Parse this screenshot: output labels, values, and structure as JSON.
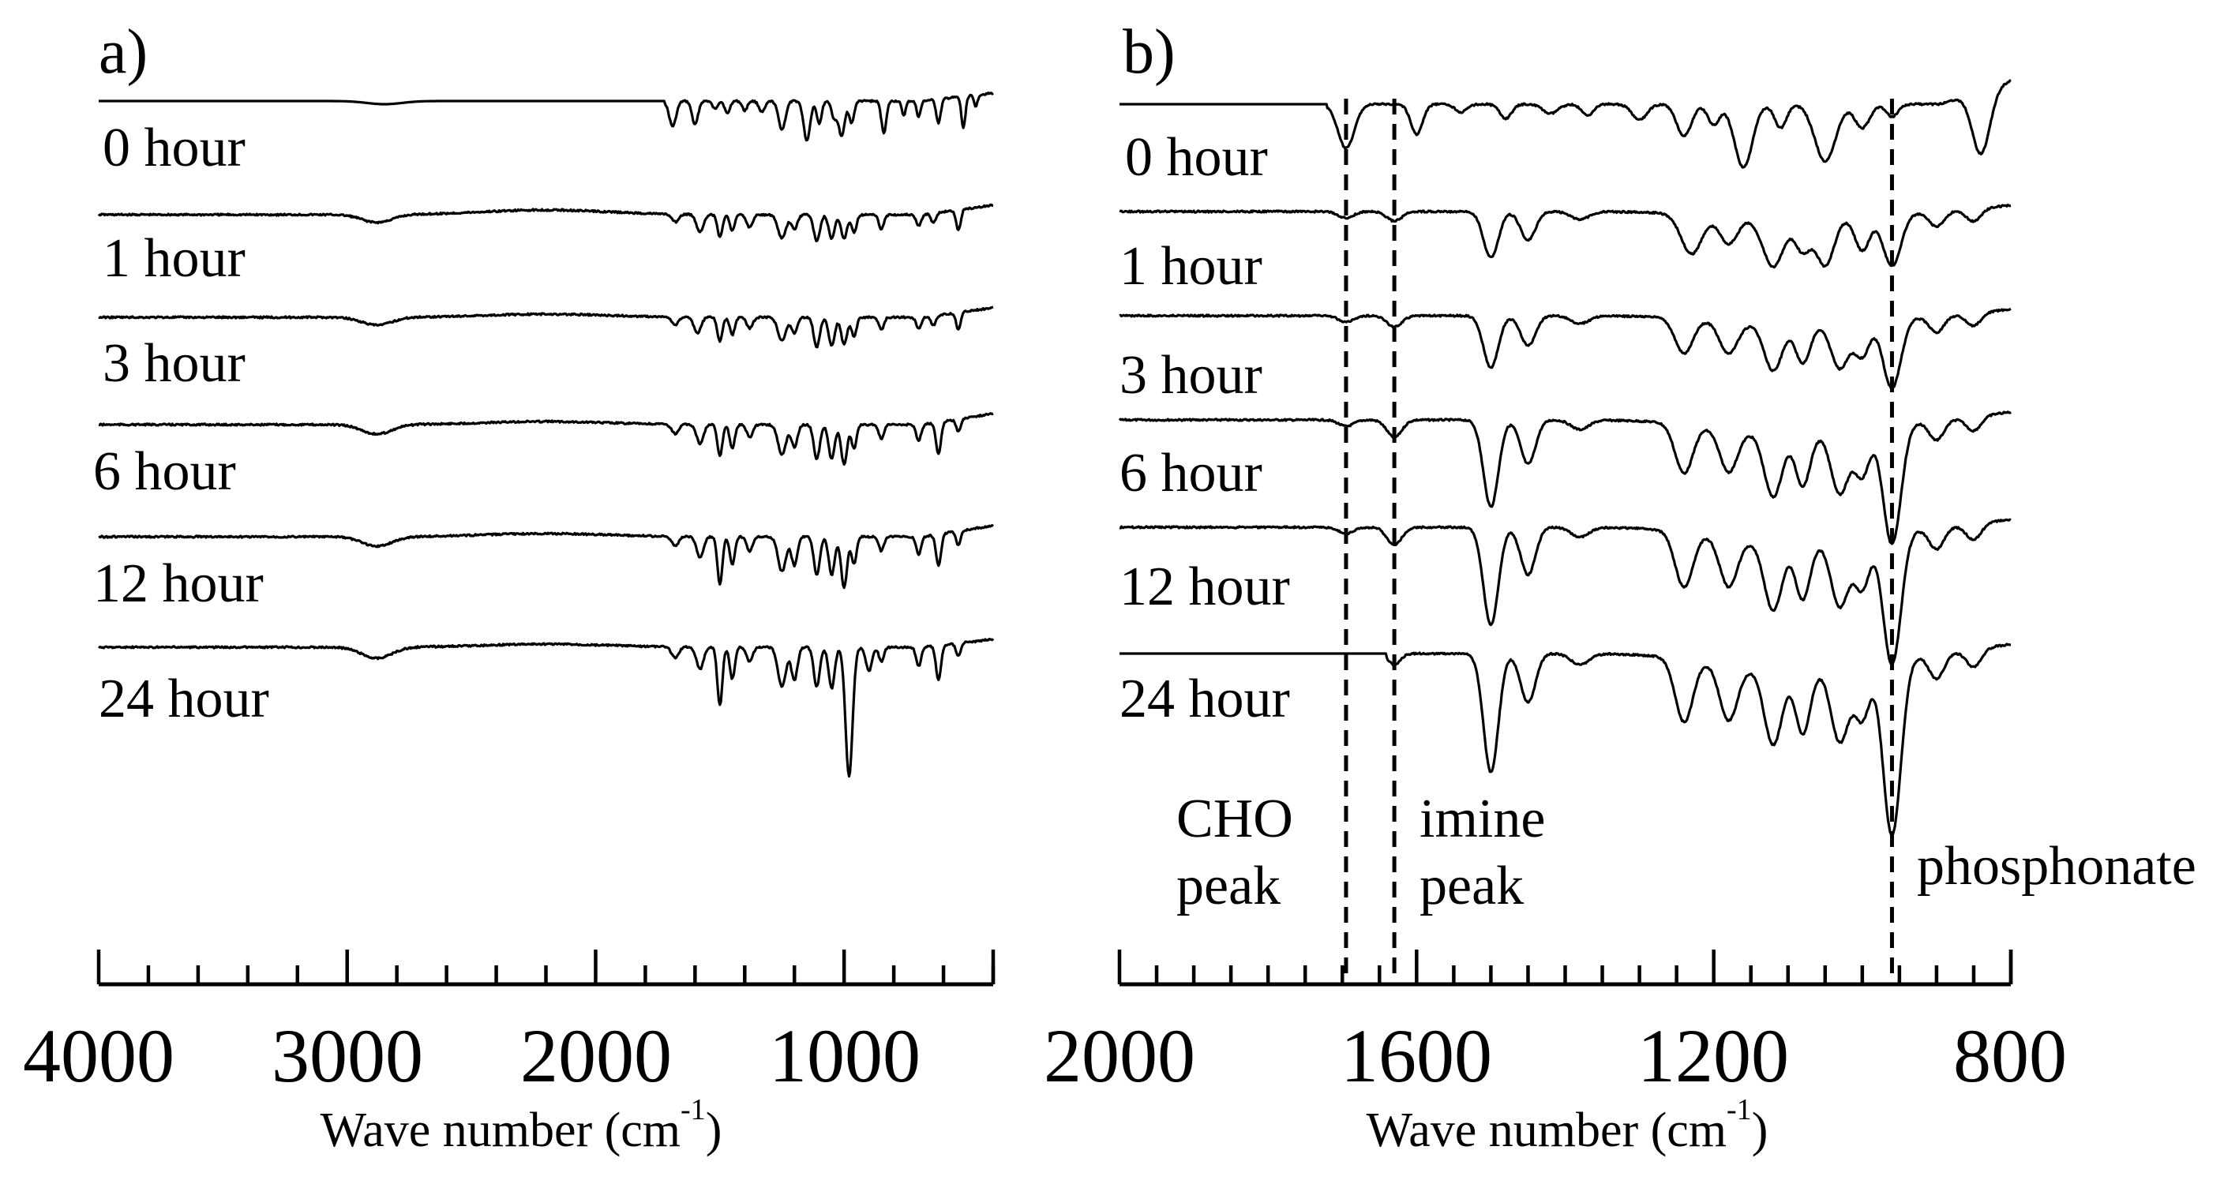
{
  "chart_data": [
    {
      "type": "line",
      "panel_label": "a)",
      "xlabel": "Wave number (cm",
      "xlabel_sup": "-1",
      "xlabel_close": ")",
      "xlim": [
        4000,
        400
      ],
      "x_reversed": true,
      "major_ticks": [
        4000,
        3000,
        2000,
        1000
      ],
      "tick_labels": [
        "4000",
        "3000",
        "2000",
        "1000"
      ],
      "minor_tick_step": 200,
      "series": [
        {
          "name": "0 hour",
          "baseline": 0,
          "flat_until": 1720,
          "broad": [
            [
              2850,
              4,
              70
            ]
          ],
          "peaks": [
            [
              1690,
              32,
              14
            ],
            [
              1600,
              30,
              12
            ],
            [
              1520,
              10,
              10
            ],
            [
              1470,
              16,
              10
            ],
            [
              1400,
              12,
              10
            ],
            [
              1330,
              14,
              12
            ],
            [
              1250,
              36,
              14
            ],
            [
              1150,
              50,
              13
            ],
            [
              1100,
              28,
              10
            ],
            [
              1040,
              22,
              10
            ],
            [
              1010,
              45,
              12
            ],
            [
              970,
              28,
              10
            ],
            [
              840,
              40,
              10
            ],
            [
              760,
              18,
              8
            ],
            [
              700,
              20,
              8
            ],
            [
              620,
              30,
              9
            ],
            [
              520,
              40,
              8
            ],
            [
              470,
              14,
              7
            ]
          ],
          "end_rise": 10
        },
        {
          "name": "1 hour",
          "baseline": 1,
          "broad": [
            [
              2880,
              10,
              60
            ],
            [
              2200,
              -6,
              250
            ]
          ],
          "peaks": [
            [
              1680,
              10,
              14
            ],
            [
              1580,
              22,
              14
            ],
            [
              1500,
              28,
              10
            ],
            [
              1450,
              20,
              10
            ],
            [
              1380,
              16,
              12
            ],
            [
              1250,
              30,
              16
            ],
            [
              1200,
              18,
              12
            ],
            [
              1110,
              34,
              12
            ],
            [
              1050,
              30,
              12
            ],
            [
              1000,
              30,
              12
            ],
            [
              960,
              22,
              10
            ],
            [
              850,
              18,
              10
            ],
            [
              700,
              14,
              10
            ],
            [
              640,
              12,
              10
            ],
            [
              540,
              26,
              9
            ]
          ],
          "end_rise": 12
        },
        {
          "name": "3 hour",
          "baseline": 2,
          "broad": [
            [
              2880,
              10,
              60
            ],
            [
              2200,
              -4,
              250
            ]
          ],
          "peaks": [
            [
              1680,
              10,
              14
            ],
            [
              1590,
              20,
              14
            ],
            [
              1500,
              30,
              10
            ],
            [
              1450,
              22,
              10
            ],
            [
              1380,
              14,
              12
            ],
            [
              1250,
              30,
              16
            ],
            [
              1200,
              20,
              12
            ],
            [
              1110,
              38,
              12
            ],
            [
              1050,
              36,
              12
            ],
            [
              1000,
              34,
              12
            ],
            [
              960,
              24,
              10
            ],
            [
              850,
              16,
              10
            ],
            [
              700,
              14,
              10
            ],
            [
              640,
              12,
              10
            ],
            [
              540,
              22,
              9
            ]
          ],
          "end_rise": 12
        },
        {
          "name": "6 hour",
          "baseline": 3,
          "broad": [
            [
              2880,
              12,
              60
            ],
            [
              2200,
              -4,
              250
            ]
          ],
          "peaks": [
            [
              1680,
              12,
              14
            ],
            [
              1580,
              24,
              14
            ],
            [
              1500,
              40,
              10
            ],
            [
              1450,
              30,
              10
            ],
            [
              1380,
              16,
              12
            ],
            [
              1250,
              38,
              16
            ],
            [
              1200,
              28,
              12
            ],
            [
              1110,
              44,
              12
            ],
            [
              1050,
              44,
              12
            ],
            [
              1000,
              50,
              12
            ],
            [
              960,
              30,
              10
            ],
            [
              850,
              18,
              10
            ],
            [
              700,
              20,
              10
            ],
            [
              620,
              40,
              10
            ],
            [
              540,
              16,
              9
            ]
          ],
          "end_rise": 14
        },
        {
          "name": "12 hour",
          "baseline": 4,
          "broad": [
            [
              2880,
              12,
              60
            ],
            [
              2200,
              -4,
              250
            ]
          ],
          "peaks": [
            [
              1680,
              12,
              14
            ],
            [
              1580,
              26,
              14
            ],
            [
              1500,
              60,
              10
            ],
            [
              1450,
              36,
              10
            ],
            [
              1380,
              18,
              12
            ],
            [
              1250,
              44,
              16
            ],
            [
              1200,
              36,
              12
            ],
            [
              1110,
              48,
              12
            ],
            [
              1050,
              48,
              12
            ],
            [
              1000,
              64,
              12
            ],
            [
              960,
              34,
              10
            ],
            [
              850,
              18,
              10
            ],
            [
              700,
              22,
              10
            ],
            [
              620,
              40,
              10
            ],
            [
              540,
              18,
              9
            ]
          ],
          "end_rise": 14
        },
        {
          "name": "24 hour",
          "baseline": 5,
          "broad": [
            [
              2880,
              14,
              60
            ],
            [
              2200,
              -4,
              250
            ]
          ],
          "peaks": [
            [
              1680,
              14,
              14
            ],
            [
              1580,
              28,
              14
            ],
            [
              1500,
              74,
              10
            ],
            [
              1450,
              40,
              10
            ],
            [
              1380,
              18,
              12
            ],
            [
              1250,
              50,
              16
            ],
            [
              1200,
              42,
              12
            ],
            [
              1110,
              50,
              12
            ],
            [
              1050,
              52,
              12
            ],
            [
              980,
              164,
              14
            ],
            [
              900,
              30,
              12
            ],
            [
              850,
              18,
              10
            ],
            [
              700,
              24,
              10
            ],
            [
              620,
              44,
              10
            ],
            [
              540,
              16,
              9
            ]
          ],
          "end_rise": 10
        }
      ]
    },
    {
      "type": "line",
      "panel_label": "b)",
      "xlabel": "Wave number (cm",
      "xlabel_sup": "-1",
      "xlabel_close": ")",
      "xlim": [
        2000,
        800
      ],
      "x_reversed": true,
      "major_ticks": [
        2000,
        1600,
        1200,
        800
      ],
      "tick_labels": [
        "2000",
        "1600",
        "1200",
        "800"
      ],
      "minor_tick_step": 50,
      "reference_lines": [
        {
          "x": 1695,
          "label_lines": [
            "CHO",
            "peak"
          ]
        },
        {
          "x": 1630,
          "label_lines": [
            "imine",
            "peak"
          ]
        },
        {
          "x": 960,
          "label_lines": [
            "phosphonate"
          ]
        }
      ],
      "series": [
        {
          "name": "0 hour",
          "baseline": 0,
          "flat_until": 1720,
          "peaks": [
            [
              1695,
              56,
              11
            ],
            [
              1600,
              38,
              8
            ],
            [
              1540,
              10,
              8
            ],
            [
              1480,
              18,
              8
            ],
            [
              1420,
              12,
              10
            ],
            [
              1370,
              14,
              8
            ],
            [
              1300,
              20,
              10
            ],
            [
              1240,
              40,
              10
            ],
            [
              1200,
              26,
              8
            ],
            [
              1160,
              80,
              12
            ],
            [
              1110,
              30,
              8
            ],
            [
              1050,
              72,
              14
            ],
            [
              1000,
              30,
              10
            ],
            [
              960,
              16,
              8
            ],
            [
              840,
              80,
              12
            ]
          ],
          "end_rise": 30
        },
        {
          "name": "1 hour",
          "baseline": 1,
          "broad": [
            [
              1100,
              10,
              90
            ]
          ],
          "peaks": [
            [
              1695,
              8,
              10
            ],
            [
              1630,
              12,
              10
            ],
            [
              1500,
              58,
              10
            ],
            [
              1450,
              36,
              10
            ],
            [
              1380,
              10,
              12
            ],
            [
              1230,
              50,
              14
            ],
            [
              1180,
              34,
              12
            ],
            [
              1120,
              60,
              14
            ],
            [
              1080,
              40,
              10
            ],
            [
              1050,
              60,
              12
            ],
            [
              1000,
              44,
              10
            ],
            [
              960,
              66,
              12
            ],
            [
              900,
              18,
              10
            ],
            [
              850,
              16,
              10
            ]
          ],
          "end_rise": 8
        },
        {
          "name": "3 hour",
          "baseline": 2,
          "broad": [
            [
              1100,
              12,
              90
            ]
          ],
          "peaks": [
            [
              1695,
              8,
              10
            ],
            [
              1630,
              14,
              10
            ],
            [
              1500,
              66,
              10
            ],
            [
              1450,
              38,
              10
            ],
            [
              1380,
              10,
              12
            ],
            [
              1240,
              44,
              12
            ],
            [
              1180,
              40,
              12
            ],
            [
              1120,
              58,
              12
            ],
            [
              1080,
              48,
              10
            ],
            [
              1030,
              58,
              12
            ],
            [
              1000,
              44,
              10
            ],
            [
              960,
              88,
              12
            ],
            [
              900,
              20,
              10
            ],
            [
              850,
              16,
              10
            ]
          ],
          "end_rise": 8
        },
        {
          "name": "6 hour",
          "baseline": 3,
          "broad": [
            [
              1100,
              18,
              90
            ]
          ],
          "peaks": [
            [
              1695,
              8,
              10
            ],
            [
              1630,
              22,
              10
            ],
            [
              1500,
              110,
              10
            ],
            [
              1450,
              56,
              10
            ],
            [
              1380,
              12,
              12
            ],
            [
              1240,
              62,
              12
            ],
            [
              1180,
              54,
              12
            ],
            [
              1120,
              80,
              12
            ],
            [
              1080,
              66,
              10
            ],
            [
              1030,
              80,
              12
            ],
            [
              1000,
              60,
              10
            ],
            [
              960,
              152,
              12
            ],
            [
              900,
              24,
              10
            ],
            [
              850,
              18,
              10
            ]
          ],
          "end_rise": 10
        },
        {
          "name": "12 hour",
          "baseline": 4,
          "broad": [
            [
              1100,
              20,
              90
            ]
          ],
          "peaks": [
            [
              1695,
              8,
              10
            ],
            [
              1630,
              22,
              10
            ],
            [
              1500,
              124,
              10
            ],
            [
              1450,
              60,
              10
            ],
            [
              1380,
              12,
              12
            ],
            [
              1240,
              70,
              12
            ],
            [
              1180,
              62,
              12
            ],
            [
              1120,
              86,
              12
            ],
            [
              1080,
              72,
              10
            ],
            [
              1030,
              86,
              12
            ],
            [
              1000,
              66,
              10
            ],
            [
              960,
              168,
              12
            ],
            [
              900,
              26,
              10
            ],
            [
              850,
              20,
              10
            ]
          ],
          "end_rise": 10
        },
        {
          "name": "24 hour",
          "baseline": 5,
          "flat_until": 1640,
          "broad": [
            [
              1100,
              22,
              90
            ]
          ],
          "peaks": [
            [
              1630,
              14,
              8
            ],
            [
              1500,
              150,
              10
            ],
            [
              1450,
              62,
              10
            ],
            [
              1380,
              14,
              12
            ],
            [
              1240,
              80,
              12
            ],
            [
              1180,
              70,
              12
            ],
            [
              1120,
              94,
              12
            ],
            [
              1080,
              80,
              10
            ],
            [
              1030,
              96,
              12
            ],
            [
              1000,
              70,
              10
            ],
            [
              960,
              224,
              12
            ],
            [
              900,
              30,
              10
            ],
            [
              850,
              22,
              10
            ]
          ],
          "end_rise": 12
        }
      ]
    }
  ]
}
